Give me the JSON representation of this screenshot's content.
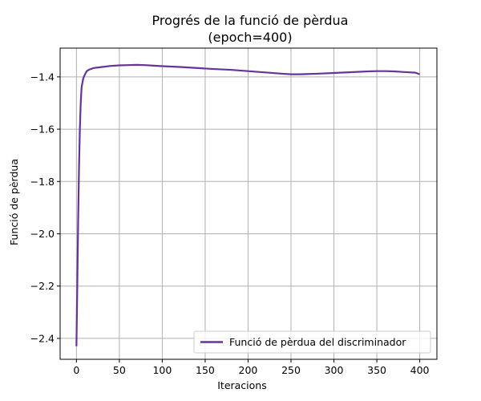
{
  "chart_data": {
    "type": "line",
    "title_line1": "Progrés de la funció de pèrdua",
    "title_line2": "(epoch=400)",
    "xlabel": "Iteracions",
    "ylabel": "Funció de pèrdua",
    "xlim": [
      -19,
      420
    ],
    "ylim": [
      -2.48,
      -1.29
    ],
    "xticks": [
      0,
      50,
      100,
      150,
      200,
      250,
      300,
      350,
      400
    ],
    "xtick_labels": [
      "0",
      "50",
      "100",
      "150",
      "200",
      "250",
      "300",
      "350",
      "400"
    ],
    "yticks": [
      -2.4,
      -2.2,
      -2.0,
      -1.8,
      -1.6,
      -1.4
    ],
    "ytick_labels": [
      "−2.4",
      "−2.2",
      "−2.0",
      "−1.8",
      "−1.6",
      "−1.4"
    ],
    "grid": true,
    "legend_position": "lower-right",
    "series": [
      {
        "name": "Funció de pèrdua del discriminador",
        "color": "#663399",
        "x": [
          0,
          1,
          2,
          3,
          4,
          5,
          6,
          8,
          10,
          12,
          15,
          20,
          30,
          40,
          50,
          60,
          70,
          80,
          90,
          100,
          120,
          140,
          160,
          180,
          200,
          220,
          240,
          250,
          260,
          280,
          300,
          320,
          340,
          350,
          360,
          370,
          380,
          390,
          395,
          400
        ],
        "y": [
          -2.43,
          -2.2,
          -1.95,
          -1.75,
          -1.6,
          -1.5,
          -1.44,
          -1.405,
          -1.39,
          -1.378,
          -1.372,
          -1.366,
          -1.362,
          -1.358,
          -1.356,
          -1.355,
          -1.354,
          -1.355,
          -1.357,
          -1.359,
          -1.362,
          -1.366,
          -1.37,
          -1.373,
          -1.378,
          -1.383,
          -1.388,
          -1.39,
          -1.39,
          -1.388,
          -1.385,
          -1.382,
          -1.379,
          -1.378,
          -1.378,
          -1.379,
          -1.381,
          -1.383,
          -1.384,
          -1.39
        ]
      }
    ]
  }
}
